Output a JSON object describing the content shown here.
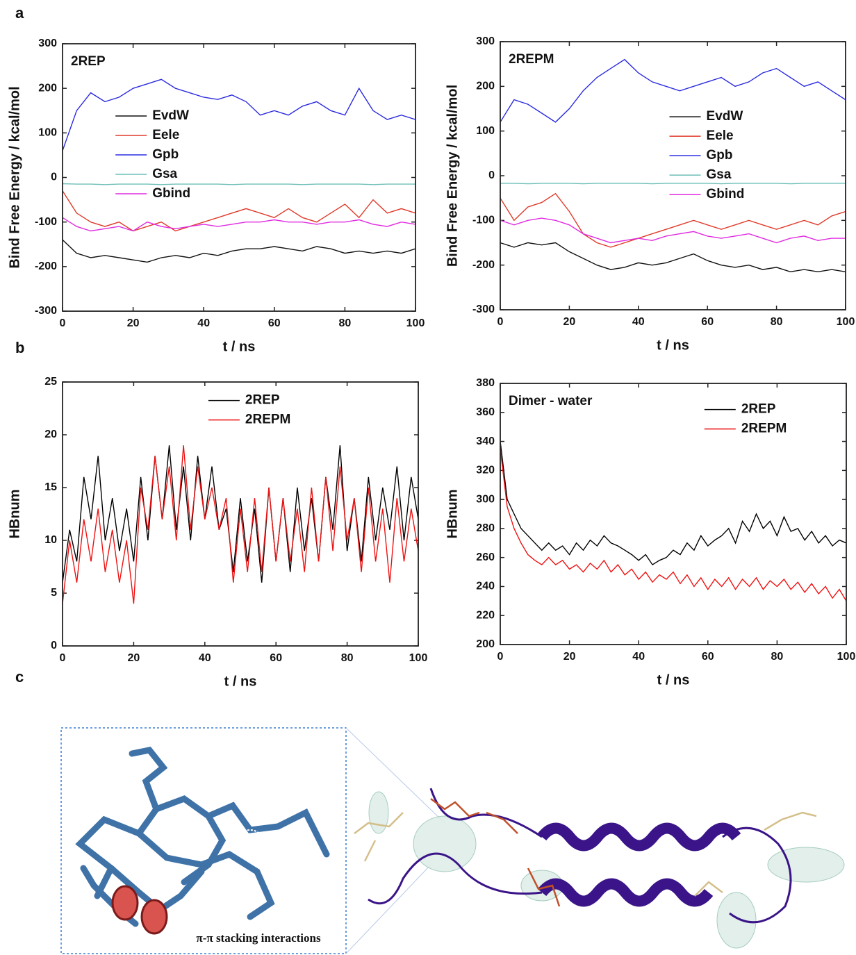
{
  "panel_labels": [
    "a",
    "b",
    "c"
  ],
  "figure_annotation": "π-π stacking interactions",
  "chart_data": [
    {
      "type": "line",
      "annotation": "2REP",
      "xlabel": "t / ns",
      "ylabel": "Bind Free Energy / kcal/mol",
      "xlim": [
        0,
        100
      ],
      "xticks": [
        0,
        20,
        40,
        60,
        80,
        100
      ],
      "ylim": [
        -300,
        300
      ],
      "yticks": [
        -300,
        -200,
        -100,
        0,
        100,
        200,
        300
      ],
      "legend": "center-left",
      "x": [
        0,
        4,
        8,
        12,
        16,
        20,
        24,
        28,
        32,
        36,
        40,
        44,
        48,
        52,
        56,
        60,
        64,
        68,
        72,
        76,
        80,
        84,
        88,
        92,
        96,
        100
      ],
      "series": [
        {
          "name": "EvdW",
          "color": "#111111",
          "values": [
            -140,
            -170,
            -180,
            -175,
            -180,
            -185,
            -190,
            -180,
            -175,
            -180,
            -170,
            -175,
            -165,
            -160,
            -160,
            -155,
            -160,
            -165,
            -155,
            -160,
            -170,
            -165,
            -170,
            -165,
            -170,
            -160
          ]
        },
        {
          "name": "Eele",
          "color": "#e03a2a",
          "values": [
            -30,
            -80,
            -100,
            -110,
            -100,
            -120,
            -110,
            -100,
            -120,
            -110,
            -100,
            -90,
            -80,
            -70,
            -80,
            -90,
            -70,
            -90,
            -100,
            -80,
            -60,
            -90,
            -50,
            -80,
            -70,
            -80
          ]
        },
        {
          "name": "Gpb",
          "color": "#2a2ae0",
          "values": [
            60,
            150,
            190,
            170,
            180,
            200,
            210,
            220,
            200,
            190,
            180,
            175,
            185,
            170,
            140,
            150,
            140,
            160,
            170,
            150,
            140,
            200,
            150,
            130,
            140,
            130
          ]
        },
        {
          "name": "Gsa",
          "color": "#6fbfb8",
          "values": [
            -14,
            -15,
            -15,
            -16,
            -15,
            -15,
            -15,
            -16,
            -15,
            -15,
            -15,
            -15,
            -16,
            -15,
            -15,
            -15,
            -15,
            -16,
            -15,
            -15,
            -15,
            -15,
            -16,
            -15,
            -15,
            -15
          ]
        },
        {
          "name": "Gbind",
          "color": "#e02ae0",
          "values": [
            -90,
            -110,
            -120,
            -115,
            -110,
            -120,
            -100,
            -110,
            -115,
            -110,
            -105,
            -110,
            -105,
            -100,
            -100,
            -95,
            -100,
            -100,
            -105,
            -100,
            -100,
            -95,
            -105,
            -110,
            -100,
            -105
          ]
        }
      ]
    },
    {
      "type": "line",
      "annotation": "2REPM",
      "xlabel": "t / ns",
      "ylabel": "Bind Free Energy / kcal/mol",
      "xlim": [
        0,
        100
      ],
      "xticks": [
        0,
        20,
        40,
        60,
        80,
        100
      ],
      "ylim": [
        -300,
        300
      ],
      "yticks": [
        -300,
        -200,
        -100,
        0,
        100,
        200,
        300
      ],
      "legend": "center-right",
      "x": [
        0,
        4,
        8,
        12,
        16,
        20,
        24,
        28,
        32,
        36,
        40,
        44,
        48,
        52,
        56,
        60,
        64,
        68,
        72,
        76,
        80,
        84,
        88,
        92,
        96,
        100
      ],
      "series": [
        {
          "name": "EvdW",
          "color": "#111111",
          "values": [
            -150,
            -160,
            -150,
            -155,
            -150,
            -170,
            -185,
            -200,
            -210,
            -205,
            -195,
            -200,
            -195,
            -185,
            -175,
            -190,
            -200,
            -205,
            -200,
            -210,
            -205,
            -215,
            -210,
            -215,
            -210,
            -215
          ]
        },
        {
          "name": "Eele",
          "color": "#e03a2a",
          "values": [
            -50,
            -100,
            -70,
            -60,
            -40,
            -80,
            -130,
            -150,
            -160,
            -150,
            -140,
            -130,
            -120,
            -110,
            -100,
            -110,
            -120,
            -110,
            -100,
            -110,
            -120,
            -110,
            -100,
            -110,
            -90,
            -80
          ]
        },
        {
          "name": "Gpb",
          "color": "#2a2ae0",
          "values": [
            120,
            170,
            160,
            140,
            120,
            150,
            190,
            220,
            240,
            260,
            230,
            210,
            200,
            190,
            200,
            210,
            220,
            200,
            210,
            230,
            240,
            220,
            200,
            210,
            190,
            170
          ]
        },
        {
          "name": "Gsa",
          "color": "#6fbfb8",
          "values": [
            -17,
            -17,
            -18,
            -17,
            -17,
            -17,
            -18,
            -17,
            -17,
            -17,
            -17,
            -18,
            -17,
            -17,
            -17,
            -17,
            -18,
            -17,
            -17,
            -17,
            -17,
            -18,
            -17,
            -17,
            -17,
            -17
          ]
        },
        {
          "name": "Gbind",
          "color": "#e02ae0",
          "values": [
            -100,
            -110,
            -100,
            -95,
            -100,
            -110,
            -130,
            -140,
            -150,
            -145,
            -140,
            -145,
            -135,
            -130,
            -125,
            -135,
            -140,
            -135,
            -130,
            -140,
            -150,
            -140,
            -135,
            -145,
            -140,
            -140
          ]
        }
      ]
    },
    {
      "type": "line",
      "xlabel": "t / ns",
      "ylabel": "HBnum",
      "xlim": [
        0,
        100
      ],
      "xticks": [
        0,
        20,
        40,
        60,
        80,
        100
      ],
      "ylim": [
        0,
        25
      ],
      "yticks": [
        0,
        5,
        10,
        15,
        20,
        25
      ],
      "legend": "upper-center",
      "x": [
        0,
        2,
        4,
        6,
        8,
        10,
        12,
        14,
        16,
        18,
        20,
        22,
        24,
        26,
        28,
        30,
        32,
        34,
        36,
        38,
        40,
        42,
        44,
        46,
        48,
        50,
        52,
        54,
        56,
        58,
        60,
        62,
        64,
        66,
        68,
        70,
        72,
        74,
        76,
        78,
        80,
        82,
        84,
        86,
        88,
        90,
        92,
        94,
        96,
        98,
        100
      ],
      "series": [
        {
          "name": "2REP",
          "color": "#000000",
          "values": [
            6,
            11,
            8,
            16,
            12,
            18,
            10,
            14,
            9,
            13,
            8,
            16,
            10,
            18,
            12,
            19,
            11,
            17,
            10,
            18,
            12,
            17,
            11,
            13,
            7,
            14,
            8,
            13,
            6,
            15,
            8,
            14,
            7,
            15,
            9,
            14,
            8,
            16,
            11,
            19,
            9,
            14,
            8,
            16,
            10,
            15,
            11,
            17,
            10,
            16,
            12
          ]
        },
        {
          "name": "2REPM",
          "color": "#ee1111",
          "values": [
            4,
            10,
            6,
            12,
            8,
            13,
            7,
            11,
            6,
            10,
            4,
            15,
            11,
            18,
            12,
            17,
            10,
            19,
            11,
            17,
            12,
            15,
            11,
            14,
            6,
            13,
            7,
            14,
            7,
            15,
            8,
            14,
            8,
            13,
            7,
            15,
            8,
            16,
            9,
            17,
            10,
            14,
            7,
            15,
            8,
            13,
            6,
            14,
            8,
            13,
            9
          ]
        }
      ]
    },
    {
      "type": "line",
      "annotation": "Dimer - water",
      "xlabel": "t / ns",
      "ylabel": "HBnum",
      "xlim": [
        0,
        100
      ],
      "xticks": [
        0,
        20,
        40,
        60,
        80,
        100
      ],
      "ylim": [
        200,
        380
      ],
      "yticks": [
        200,
        220,
        240,
        260,
        280,
        300,
        320,
        340,
        360,
        380
      ],
      "legend": "upper-right",
      "x": [
        0,
        2,
        4,
        6,
        8,
        10,
        12,
        14,
        16,
        18,
        20,
        22,
        24,
        26,
        28,
        30,
        32,
        34,
        36,
        38,
        40,
        42,
        44,
        46,
        48,
        50,
        52,
        54,
        56,
        58,
        60,
        62,
        64,
        66,
        68,
        70,
        72,
        74,
        76,
        78,
        80,
        82,
        84,
        86,
        88,
        90,
        92,
        94,
        96,
        98,
        100
      ],
      "series": [
        {
          "name": "2REP",
          "color": "#000000",
          "values": [
            340,
            300,
            290,
            280,
            275,
            270,
            265,
            270,
            265,
            268,
            262,
            270,
            265,
            272,
            268,
            275,
            270,
            268,
            265,
            262,
            258,
            262,
            255,
            258,
            260,
            265,
            262,
            270,
            265,
            275,
            268,
            272,
            275,
            280,
            270,
            285,
            278,
            290,
            280,
            285,
            275,
            288,
            278,
            280,
            272,
            278,
            270,
            275,
            268,
            272,
            270
          ]
        },
        {
          "name": "2REPM",
          "color": "#ee1111",
          "values": [
            335,
            295,
            280,
            270,
            262,
            258,
            255,
            260,
            255,
            258,
            252,
            255,
            250,
            256,
            252,
            258,
            250,
            255,
            248,
            252,
            245,
            250,
            243,
            248,
            245,
            250,
            242,
            248,
            240,
            246,
            238,
            245,
            240,
            246,
            238,
            245,
            240,
            246,
            238,
            244,
            240,
            245,
            238,
            243,
            236,
            242,
            235,
            240,
            232,
            238,
            230
          ]
        }
      ]
    }
  ]
}
